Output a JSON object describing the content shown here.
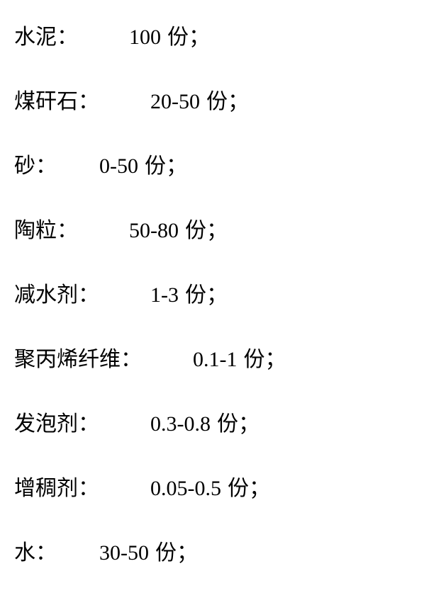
{
  "fontsize": 30,
  "text_color": "#000000",
  "background_color": "#ffffff",
  "unit": "份",
  "items": [
    {
      "label": "水泥：",
      "value": "100",
      "spacer_em": 2.4
    },
    {
      "label": "煤矸石：",
      "value": "20-50",
      "spacer_em": 2.4
    },
    {
      "label": "砂：",
      "value": "0-50",
      "spacer_em": 2.0
    },
    {
      "label": "陶粒：",
      "value": "50-80",
      "spacer_em": 2.4
    },
    {
      "label": "减水剂：",
      "value": "1-3",
      "spacer_em": 2.4
    },
    {
      "label": "聚丙烯纤维：",
      "value": "0.1-1",
      "spacer_em": 2.4
    },
    {
      "label": "发泡剂：",
      "value": "0.3-0.8",
      "spacer_em": 2.4
    },
    {
      "label": "增稠剂：",
      "value": "0.05-0.5",
      "spacer_em": 2.4
    },
    {
      "label": "水：",
      "value": "30-50",
      "spacer_em": 2.0
    }
  ]
}
